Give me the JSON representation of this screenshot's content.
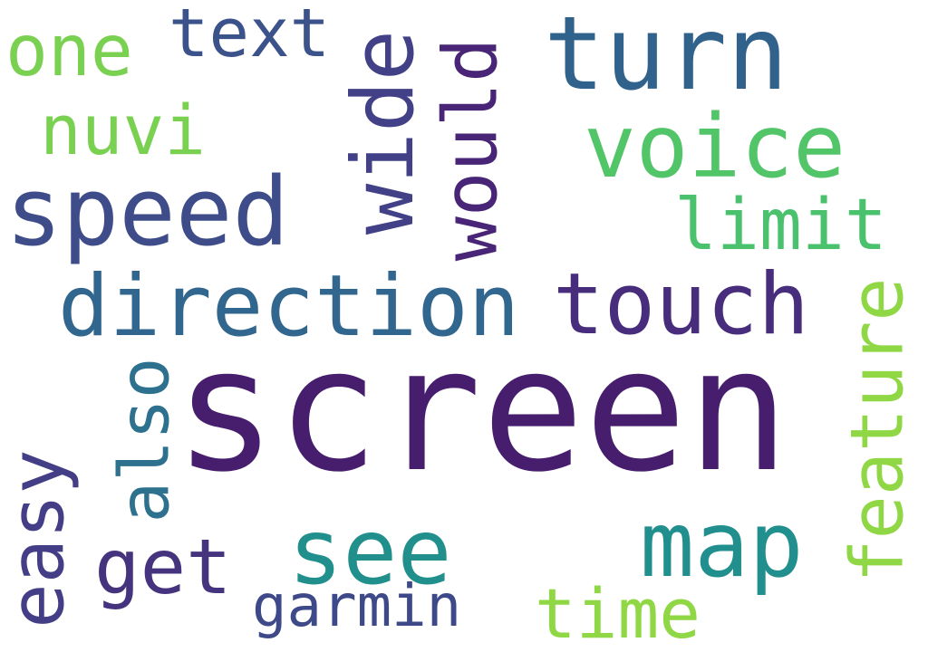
{
  "words": [
    {
      "text": "screen",
      "color": "#471d6e"
    },
    {
      "text": "turn",
      "color": "#30628c"
    },
    {
      "text": "speed",
      "color": "#3e4c8a"
    },
    {
      "text": "direction",
      "color": "#31668e"
    },
    {
      "text": "touch",
      "color": "#472d7b"
    },
    {
      "text": "voice",
      "color": "#52c569"
    },
    {
      "text": "see",
      "color": "#21908d"
    },
    {
      "text": "map",
      "color": "#218f8d"
    },
    {
      "text": "wide",
      "color": "#424086"
    },
    {
      "text": "would",
      "color": "#482576"
    },
    {
      "text": "limit",
      "color": "#4ac16d"
    },
    {
      "text": "feature",
      "color": "#8fd744"
    },
    {
      "text": "also",
      "color": "#2d718e"
    },
    {
      "text": "easy",
      "color": "#433e85"
    },
    {
      "text": "get",
      "color": "#46337e"
    },
    {
      "text": "garmin",
      "color": "#3e4989"
    },
    {
      "text": "time",
      "color": "#8fd744"
    },
    {
      "text": "one",
      "color": "#7ad151"
    },
    {
      "text": "text",
      "color": "#3b528b"
    },
    {
      "text": "nuvi",
      "color": "#7ad151"
    }
  ]
}
